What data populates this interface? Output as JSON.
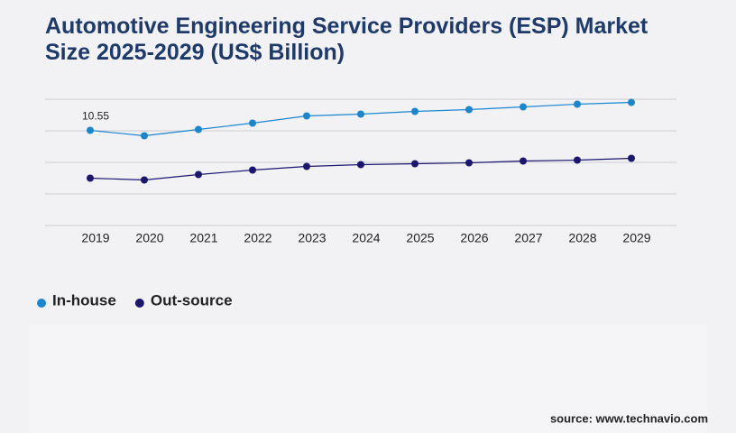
{
  "chart_data": {
    "type": "line",
    "title": "Automotive Engineering Service Providers (ESP) Market Size 2025-2029 (US$ Billion)",
    "x": [
      "2019",
      "2020",
      "2021",
      "2022",
      "2023",
      "2024",
      "2025",
      "2026",
      "2027",
      "2028",
      "2029"
    ],
    "series": [
      {
        "name": "In-house",
        "color": "#1a86d0",
        "values": [
          10.55,
          9.95,
          10.65,
          11.35,
          12.15,
          12.35,
          12.65,
          12.85,
          13.15,
          13.45,
          13.65
        ]
      },
      {
        "name": "Out-source",
        "color": "#1b1670",
        "values": [
          5.25,
          5.05,
          5.65,
          6.15,
          6.55,
          6.75,
          6.85,
          6.95,
          7.15,
          7.25,
          7.45
        ]
      }
    ],
    "value_labels": {
      "series": 0,
      "index": 0,
      "label": "10.55"
    },
    "ylim": [
      0,
      14
    ],
    "yticks": [
      0,
      3.5,
      7,
      10.5,
      14
    ],
    "grid": true,
    "source": "source: www.technavio.com"
  }
}
